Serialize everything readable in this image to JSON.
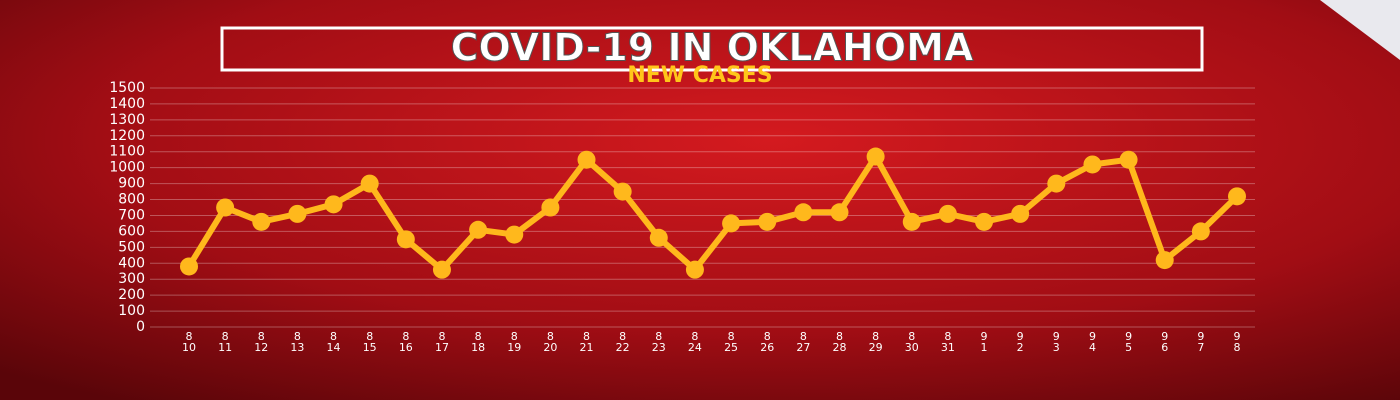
{
  "chart_data": {
    "type": "line",
    "title": "COVID-19 IN OKLAHOMA",
    "subtitle": "NEW CASES",
    "categories": [
      [
        "8",
        "10"
      ],
      [
        "8",
        "11"
      ],
      [
        "8",
        "12"
      ],
      [
        "8",
        "13"
      ],
      [
        "8",
        "14"
      ],
      [
        "8",
        "15"
      ],
      [
        "8",
        "16"
      ],
      [
        "8",
        "17"
      ],
      [
        "8",
        "18"
      ],
      [
        "8",
        "19"
      ],
      [
        "8",
        "20"
      ],
      [
        "8",
        "21"
      ],
      [
        "8",
        "22"
      ],
      [
        "8",
        "23"
      ],
      [
        "8",
        "24"
      ],
      [
        "8",
        "25"
      ],
      [
        "8",
        "26"
      ],
      [
        "8",
        "27"
      ],
      [
        "8",
        "28"
      ],
      [
        "8",
        "29"
      ],
      [
        "8",
        "30"
      ],
      [
        "8",
        "31"
      ],
      [
        "9",
        "1"
      ],
      [
        "9",
        "2"
      ],
      [
        "9",
        "3"
      ],
      [
        "9",
        "4"
      ],
      [
        "9",
        "5"
      ],
      [
        "9",
        "6"
      ],
      [
        "9",
        "7"
      ],
      [
        "9",
        "8"
      ]
    ],
    "values": [
      380,
      750,
      660,
      710,
      770,
      900,
      550,
      360,
      610,
      580,
      750,
      1050,
      850,
      560,
      360,
      650,
      660,
      720,
      720,
      1070,
      660,
      710,
      660,
      710,
      900,
      1020,
      1050,
      420,
      600,
      820
    ],
    "color": "#ffb81c",
    "ylim": [
      0,
      1500
    ],
    "yticks": [
      0,
      100,
      200,
      300,
      400,
      500,
      600,
      700,
      800,
      900,
      1000,
      1100,
      1200,
      1300,
      1400,
      1500
    ],
    "grid": true
  }
}
